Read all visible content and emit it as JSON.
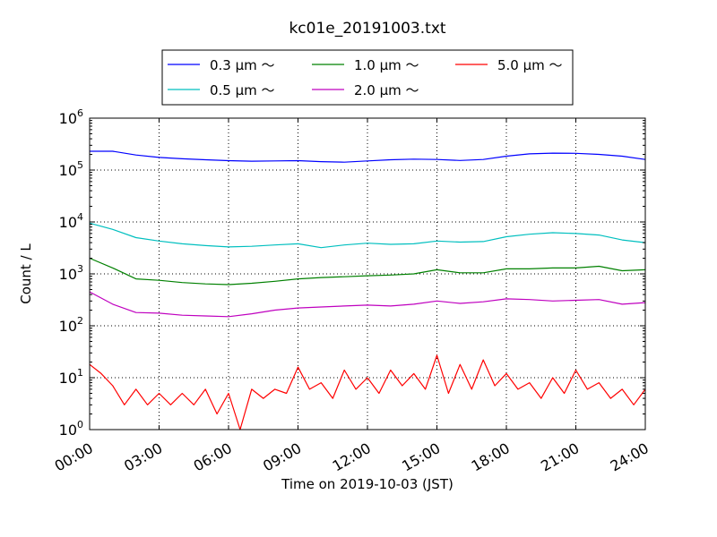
{
  "chart_data": {
    "type": "line",
    "title": "kc01e_20191003.txt",
    "xlabel": "Time on 2019-10-03 (JST)",
    "ylabel": "Count / L",
    "yscale": "log",
    "ylim": [
      1,
      1000000
    ],
    "xlim": [
      "00:00",
      "24:00"
    ],
    "xticks": [
      "00:00",
      "03:00",
      "06:00",
      "09:00",
      "12:00",
      "15:00",
      "18:00",
      "21:00",
      "24:00"
    ],
    "yticks": [
      {
        "base": "10",
        "exp": "0"
      },
      {
        "base": "10",
        "exp": "1"
      },
      {
        "base": "10",
        "exp": "2"
      },
      {
        "base": "10",
        "exp": "3"
      },
      {
        "base": "10",
        "exp": "4"
      },
      {
        "base": "10",
        "exp": "5"
      },
      {
        "base": "10",
        "exp": "6"
      }
    ],
    "grid": true,
    "legend_position": "top",
    "series": [
      {
        "name": "0.3 μm ～",
        "color": "#0000ff",
        "x": [
          "00:00",
          "01:00",
          "02:00",
          "03:00",
          "04:00",
          "05:00",
          "06:00",
          "07:00",
          "08:00",
          "09:00",
          "10:00",
          "11:00",
          "12:00",
          "13:00",
          "14:00",
          "15:00",
          "16:00",
          "17:00",
          "18:00",
          "19:00",
          "20:00",
          "21:00",
          "22:00",
          "23:00",
          "24:00"
        ],
        "y": [
          230000,
          230000,
          195000,
          175000,
          165000,
          158000,
          152000,
          148000,
          150000,
          152000,
          145000,
          142000,
          150000,
          158000,
          162000,
          160000,
          153000,
          160000,
          185000,
          205000,
          212000,
          210000,
          200000,
          185000,
          160000
        ]
      },
      {
        "name": "0.5 μm ～",
        "color": "#00bfbf",
        "x": [
          "00:00",
          "01:00",
          "02:00",
          "03:00",
          "04:00",
          "05:00",
          "06:00",
          "07:00",
          "08:00",
          "09:00",
          "10:00",
          "11:00",
          "12:00",
          "13:00",
          "14:00",
          "15:00",
          "16:00",
          "17:00",
          "18:00",
          "19:00",
          "20:00",
          "21:00",
          "22:00",
          "23:00",
          "24:00"
        ],
        "y": [
          9500,
          7200,
          5000,
          4300,
          3800,
          3500,
          3300,
          3400,
          3600,
          3800,
          3200,
          3600,
          3900,
          3700,
          3800,
          4300,
          4100,
          4200,
          5200,
          5800,
          6200,
          6000,
          5600,
          4500,
          4000
        ]
      },
      {
        "name": "1.0 μm ～",
        "color": "#008000",
        "x": [
          "00:00",
          "01:00",
          "02:00",
          "03:00",
          "04:00",
          "05:00",
          "06:00",
          "07:00",
          "08:00",
          "09:00",
          "10:00",
          "11:00",
          "12:00",
          "13:00",
          "14:00",
          "15:00",
          "16:00",
          "17:00",
          "18:00",
          "19:00",
          "20:00",
          "21:00",
          "22:00",
          "23:00",
          "24:00"
        ],
        "y": [
          2000,
          1300,
          800,
          750,
          680,
          640,
          620,
          660,
          720,
          800,
          850,
          880,
          920,
          950,
          1000,
          1200,
          1050,
          1050,
          1250,
          1250,
          1300,
          1300,
          1400,
          1150,
          1200
        ]
      },
      {
        "name": "2.0 μm ～",
        "color": "#bf00bf",
        "x": [
          "00:00",
          "01:00",
          "02:00",
          "03:00",
          "04:00",
          "05:00",
          "06:00",
          "07:00",
          "08:00",
          "09:00",
          "10:00",
          "11:00",
          "12:00",
          "13:00",
          "14:00",
          "15:00",
          "16:00",
          "17:00",
          "18:00",
          "19:00",
          "20:00",
          "21:00",
          "22:00",
          "23:00",
          "24:00"
        ],
        "y": [
          450,
          260,
          180,
          175,
          160,
          155,
          150,
          170,
          200,
          220,
          230,
          240,
          250,
          240,
          260,
          300,
          270,
          290,
          330,
          320,
          300,
          310,
          320,
          260,
          280
        ]
      },
      {
        "name": "5.0 μm ～",
        "color": "#ff0000",
        "x": [
          "00:00",
          "00:30",
          "01:00",
          "01:30",
          "02:00",
          "02:30",
          "03:00",
          "03:30",
          "04:00",
          "04:30",
          "05:00",
          "05:30",
          "06:00",
          "06:30",
          "07:00",
          "07:30",
          "08:00",
          "08:30",
          "09:00",
          "09:30",
          "10:00",
          "10:30",
          "11:00",
          "11:30",
          "12:00",
          "12:30",
          "13:00",
          "13:30",
          "14:00",
          "14:30",
          "15:00",
          "15:30",
          "16:00",
          "16:30",
          "17:00",
          "17:30",
          "18:00",
          "18:30",
          "19:00",
          "19:30",
          "20:00",
          "20:30",
          "21:00",
          "21:30",
          "22:00",
          "22:30",
          "23:00",
          "23:30",
          "24:00"
        ],
        "y": [
          18,
          12,
          7,
          3,
          6,
          3,
          5,
          3,
          5,
          3,
          6,
          2,
          5,
          1,
          6,
          4,
          6,
          5,
          16,
          6,
          8,
          4,
          14,
          6,
          10,
          5,
          14,
          7,
          12,
          6,
          27,
          5,
          18,
          6,
          22,
          7,
          12,
          6,
          8,
          4,
          10,
          5,
          14,
          6,
          8,
          4,
          6,
          3,
          6
        ]
      }
    ]
  }
}
